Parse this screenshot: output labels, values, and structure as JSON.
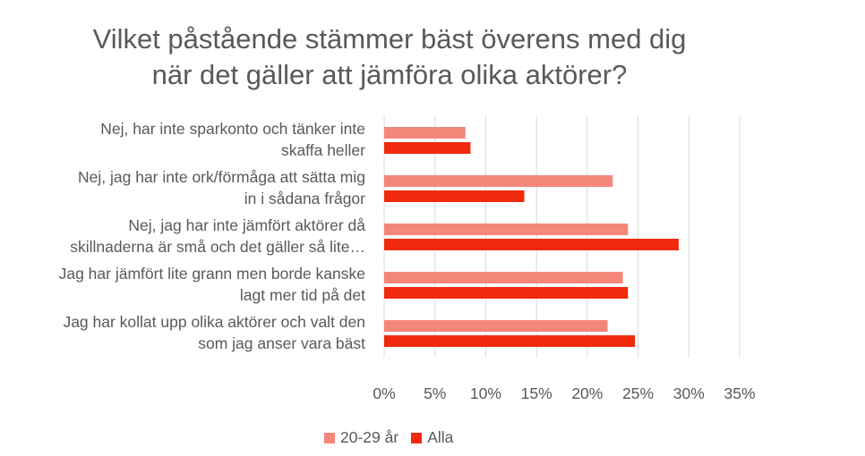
{
  "chart_data": {
    "type": "bar",
    "orientation": "horizontal",
    "title_lines": [
      "Vilket påstående stämmer bäst överens med dig",
      "när det gäller att jämföra olika aktörer?"
    ],
    "categories": [
      [
        "Nej, har inte sparkonto och tänker inte",
        "skaffa heller"
      ],
      [
        "Nej, jag har inte ork/förmåga att sätta mig",
        "in i sådana frågor"
      ],
      [
        "Nej, jag har inte jämfört aktörer då",
        "skillnaderna är små och det gäller så lite…"
      ],
      [
        "Jag har jämfört lite grann men borde kanske",
        "lagt mer tid på det"
      ],
      [
        "Jag har kollat upp olika aktörer och valt den",
        "som jag anser vara bäst"
      ]
    ],
    "series": [
      {
        "name": "20-29 år",
        "color": "#f4877a",
        "values": [
          8.0,
          22.5,
          24.0,
          23.5,
          22.0
        ]
      },
      {
        "name": "Alla",
        "color": "#f12a0d",
        "values": [
          8.5,
          13.8,
          29.0,
          24.0,
          24.7
        ]
      }
    ],
    "xlim": [
      0,
      35
    ],
    "xticks": [
      "0%",
      "5%",
      "10%",
      "15%",
      "20%",
      "25%",
      "30%",
      "35%"
    ],
    "grid": true,
    "legend_position": "bottom"
  }
}
